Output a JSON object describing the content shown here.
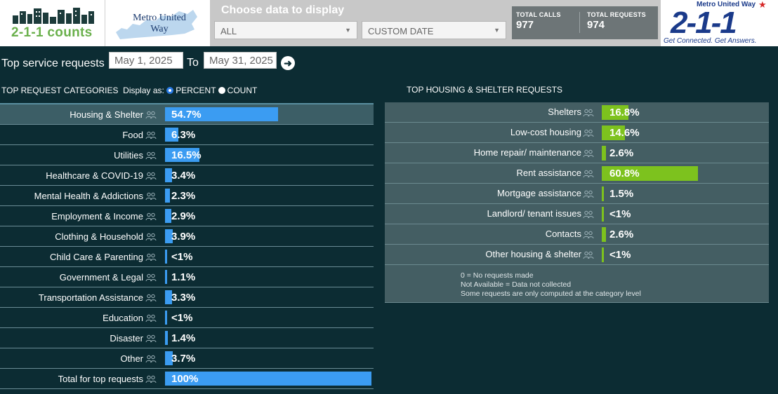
{
  "header": {
    "brand_211counts": "2-1-1 counts",
    "metro_logo_text": "Metro United Way",
    "controls_title": "Choose data to display",
    "area_select": "ALL",
    "date_select": "CUSTOM DATE",
    "total_calls_label": "TOTAL CALLS",
    "total_calls": "977",
    "total_requests_label": "TOTAL REQUESTS",
    "total_requests": "974",
    "logo_211_top": "Metro United Way",
    "logo_211_big": "2-1-1",
    "logo_211_tagline": "Get Connected. Get Answers.",
    "colors": {
      "brand_green": "#6ab04c",
      "navy": "#1a3a8a",
      "bar_blue": "#3b9cf2",
      "bar_green": "#7dc21e",
      "background": "#0c2c33"
    }
  },
  "filters": {
    "label": "Top service requests",
    "from": "May 1, 2025",
    "to_label": "To",
    "to": "May 31, 2025",
    "go_icon": "arrow-right-circle-icon"
  },
  "left": {
    "heading": "TOP REQUEST CATEGORIES",
    "display_label": "Display as:",
    "option_percent": "PERCENT",
    "option_count": "COUNT",
    "selected": "PERCENT",
    "rows": [
      {
        "label": "Housing & Shelter",
        "value": "54.7%",
        "fraction": 0.547
      },
      {
        "label": "Food",
        "value": "6.3%",
        "fraction": 0.063
      },
      {
        "label": "Utilities",
        "value": "16.5%",
        "fraction": 0.165
      },
      {
        "label": "Healthcare & COVID-19",
        "value": "3.4%",
        "fraction": 0.034
      },
      {
        "label": "Mental Health & Addictions",
        "value": "2.3%",
        "fraction": 0.023
      },
      {
        "label": "Employment & Income",
        "value": "2.9%",
        "fraction": 0.029
      },
      {
        "label": "Clothing & Household",
        "value": "3.9%",
        "fraction": 0.039
      },
      {
        "label": "Child Care & Parenting",
        "value": "<1%",
        "fraction": 0.005
      },
      {
        "label": "Government & Legal",
        "value": "1.1%",
        "fraction": 0.011
      },
      {
        "label": "Transportation Assistance",
        "value": "3.3%",
        "fraction": 0.033
      },
      {
        "label": "Education",
        "value": "<1%",
        "fraction": 0.005
      },
      {
        "label": "Disaster",
        "value": "1.4%",
        "fraction": 0.014
      },
      {
        "label": "Other",
        "value": "3.7%",
        "fraction": 0.037
      },
      {
        "label": "Total for top requests",
        "value": "100%",
        "fraction": 1.0
      }
    ]
  },
  "right": {
    "heading": "TOP HOUSING & SHELTER REQUESTS",
    "rows": [
      {
        "label": "Shelters",
        "value": "16.8%",
        "fraction": 0.168
      },
      {
        "label": "Low-cost housing",
        "value": "14.6%",
        "fraction": 0.146
      },
      {
        "label": "Home repair/ maintenance",
        "value": "2.6%",
        "fraction": 0.026
      },
      {
        "label": "Rent assistance",
        "value": "60.8%",
        "fraction": 0.608
      },
      {
        "label": "Mortgage assistance",
        "value": "1.5%",
        "fraction": 0.015
      },
      {
        "label": "Landlord/ tenant issues",
        "value": "<1%",
        "fraction": 0.005
      },
      {
        "label": "Contacts",
        "value": "2.6%",
        "fraction": 0.026
      },
      {
        "label": "Other housing & shelter",
        "value": "<1%",
        "fraction": 0.005
      }
    ],
    "notes": [
      "0 = No requests made",
      "Not Available = Data not collected",
      "Some requests are only computed at the category level"
    ]
  }
}
